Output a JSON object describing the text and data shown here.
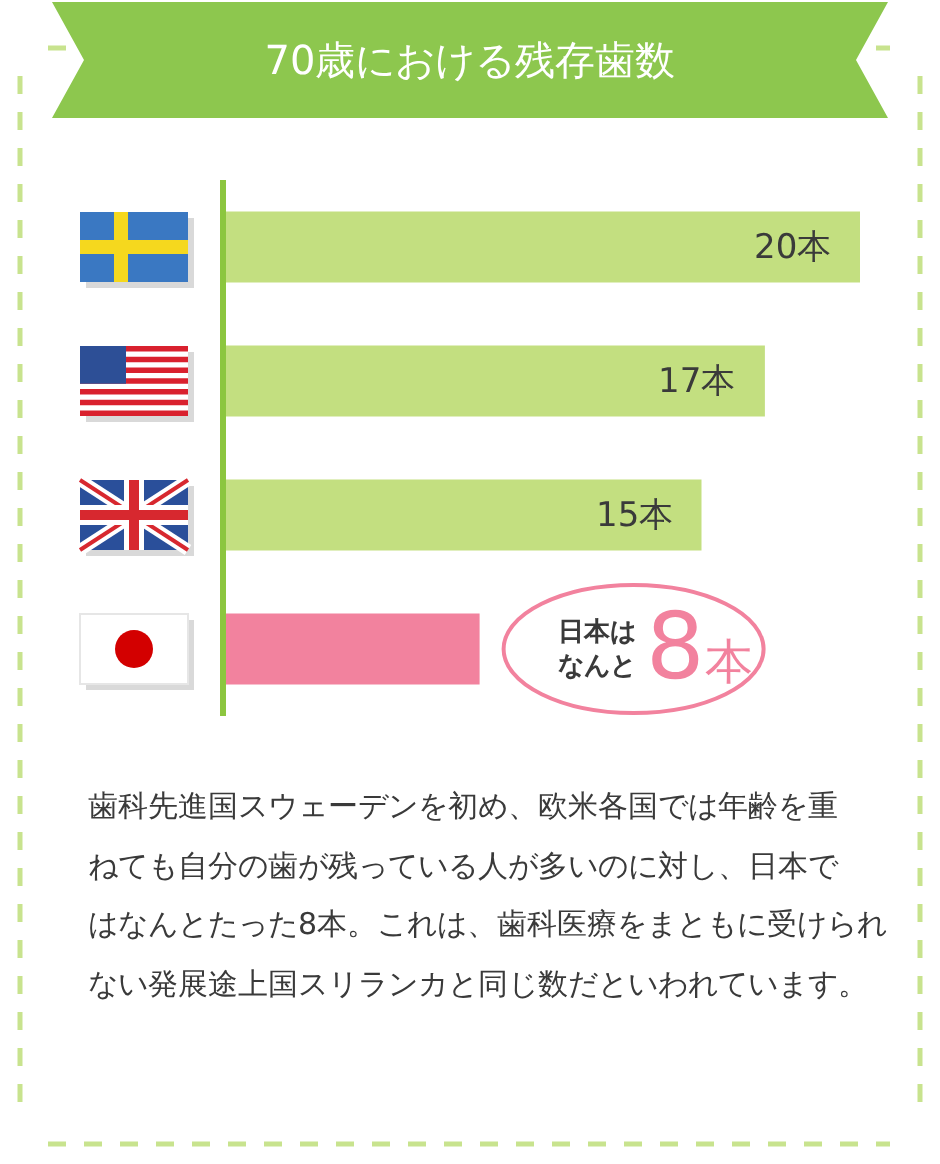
{
  "chart_data": {
    "type": "bar",
    "orientation": "horizontal",
    "title": "70歳における残存歯数",
    "categories": [
      null,
      null,
      null,
      null
    ],
    "values": [
      20,
      17,
      15,
      8
    ],
    "colors": [
      "#c3df80",
      "#c3df80",
      "#c3df80",
      "#f2829e"
    ],
    "value_labels": [
      "20本",
      "17本",
      "15本",
      "日本はなんと8本"
    ],
    "tick_labels": false,
    "annotations": [
      "歯科先進国スウェーデンを初め、欧米各国では年齢を重",
      "ねても自分の歯が残っている人が多いのに対し、日本で",
      "はなんとたった8本。これは、歯科医療をまともに受けられ",
      "ない発展途上国スリランカと同じ数だといわれています。"
    ]
  }
}
